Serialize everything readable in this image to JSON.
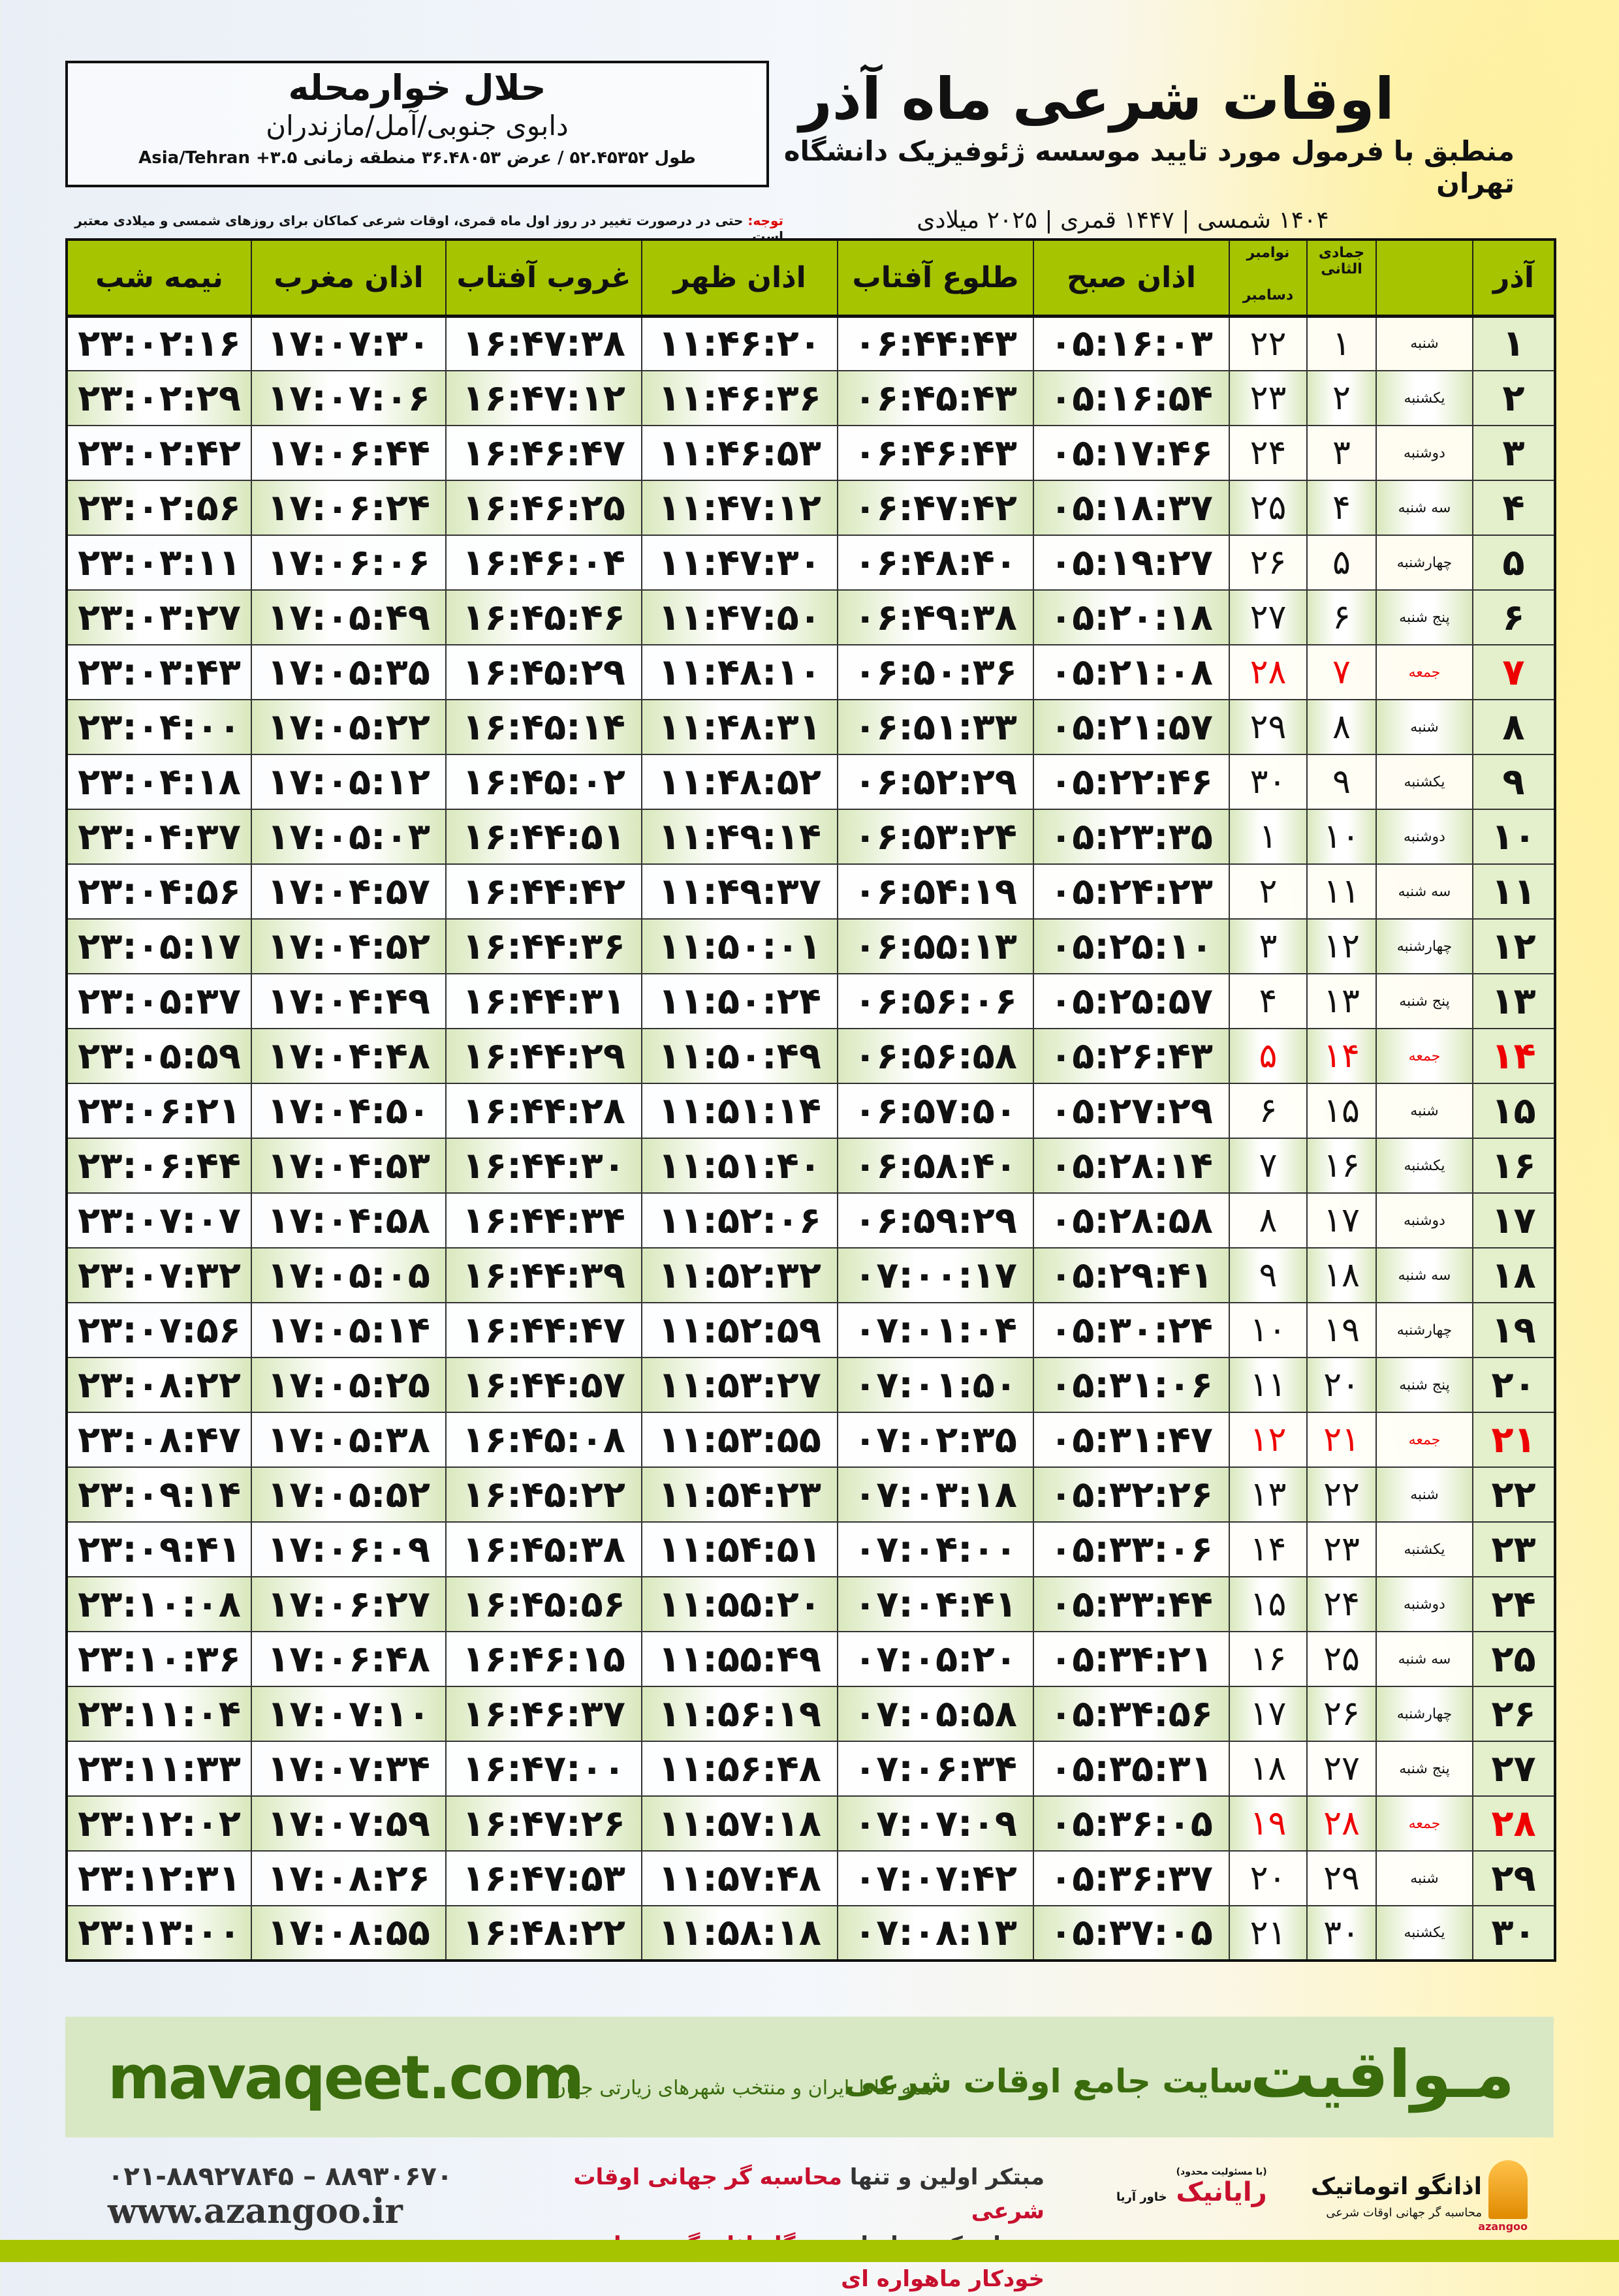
{
  "location": {
    "name": "حلال خوارمحله",
    "region": "دابوی جنوبی/آمل/مازندران",
    "coords": "طول ۵۲.۴۵۳۵۲ / عرض ۳۶.۴۸۰۵۳ منطقه زمانی Asia/Tehran +۳.۵"
  },
  "title": {
    "main": "اوقات شرعی ماه آذر",
    "subtitle": "منطبق با فرمول مورد تایید موسسه ژئوفیزیک دانشگاه تهران",
    "years": "۱۴۰۴ شمسی | ۱۴۴۷ قمری | ۲۰۲۵ میلادی"
  },
  "note": {
    "label": "توجه:",
    "text": " حتی در درصورت تغییر در روز اول ماه قمری، اوقات شرعی کماکان برای روزهای شمسی و میلادی معتبر است."
  },
  "table": {
    "headers": {
      "day": "آذر",
      "qamari": "جمادی الثانی",
      "greg_top": "نوامبر",
      "greg_bottom": "دسامبر",
      "fajr": "اذان صبح",
      "sunrise": "طلوع آفتاب",
      "dhuhr": "اذان ظهر",
      "sunset": "غروب آفتاب",
      "maghrib": "اذان مغرب",
      "midnight": "نیمه شب"
    },
    "holiday_color": "#e00000",
    "header_color": "#a6c400",
    "rows": [
      [
        "۱",
        "شنبه",
        "۱",
        "۲۲",
        "۰۵:۱۶:۰۳",
        "۰۶:۴۴:۴۳",
        "۱۱:۴۶:۲۰",
        "۱۶:۴۷:۳۸",
        "۱۷:۰۷:۳۰",
        "۲۳:۰۲:۱۶",
        false
      ],
      [
        "۲",
        "یکشنبه",
        "۲",
        "۲۳",
        "۰۵:۱۶:۵۴",
        "۰۶:۴۵:۴۳",
        "۱۱:۴۶:۳۶",
        "۱۶:۴۷:۱۲",
        "۱۷:۰۷:۰۶",
        "۲۳:۰۲:۲۹",
        false
      ],
      [
        "۳",
        "دوشنبه",
        "۳",
        "۲۴",
        "۰۵:۱۷:۴۶",
        "۰۶:۴۶:۴۳",
        "۱۱:۴۶:۵۳",
        "۱۶:۴۶:۴۷",
        "۱۷:۰۶:۴۴",
        "۲۳:۰۲:۴۲",
        false
      ],
      [
        "۴",
        "سه شنبه",
        "۴",
        "۲۵",
        "۰۵:۱۸:۳۷",
        "۰۶:۴۷:۴۲",
        "۱۱:۴۷:۱۲",
        "۱۶:۴۶:۲۵",
        "۱۷:۰۶:۲۴",
        "۲۳:۰۲:۵۶",
        false
      ],
      [
        "۵",
        "چهارشنبه",
        "۵",
        "۲۶",
        "۰۵:۱۹:۲۷",
        "۰۶:۴۸:۴۰",
        "۱۱:۴۷:۳۰",
        "۱۶:۴۶:۰۴",
        "۱۷:۰۶:۰۶",
        "۲۳:۰۳:۱۱",
        false
      ],
      [
        "۶",
        "پنج شنبه",
        "۶",
        "۲۷",
        "۰۵:۲۰:۱۸",
        "۰۶:۴۹:۳۸",
        "۱۱:۴۷:۵۰",
        "۱۶:۴۵:۴۶",
        "۱۷:۰۵:۴۹",
        "۲۳:۰۳:۲۷",
        false
      ],
      [
        "۷",
        "جمعه",
        "۷",
        "۲۸",
        "۰۵:۲۱:۰۸",
        "۰۶:۵۰:۳۶",
        "۱۱:۴۸:۱۰",
        "۱۶:۴۵:۲۹",
        "۱۷:۰۵:۳۵",
        "۲۳:۰۳:۴۳",
        true
      ],
      [
        "۸",
        "شنبه",
        "۸",
        "۲۹",
        "۰۵:۲۱:۵۷",
        "۰۶:۵۱:۳۳",
        "۱۱:۴۸:۳۱",
        "۱۶:۴۵:۱۴",
        "۱۷:۰۵:۲۲",
        "۲۳:۰۴:۰۰",
        false
      ],
      [
        "۹",
        "یکشنبه",
        "۹",
        "۳۰",
        "۰۵:۲۲:۴۶",
        "۰۶:۵۲:۲۹",
        "۱۱:۴۸:۵۲",
        "۱۶:۴۵:۰۲",
        "۱۷:۰۵:۱۲",
        "۲۳:۰۴:۱۸",
        false
      ],
      [
        "۱۰",
        "دوشنبه",
        "۱۰",
        "۱",
        "۰۵:۲۳:۳۵",
        "۰۶:۵۳:۲۴",
        "۱۱:۴۹:۱۴",
        "۱۶:۴۴:۵۱",
        "۱۷:۰۵:۰۳",
        "۲۳:۰۴:۳۷",
        false
      ],
      [
        "۱۱",
        "سه شنبه",
        "۱۱",
        "۲",
        "۰۵:۲۴:۲۳",
        "۰۶:۵۴:۱۹",
        "۱۱:۴۹:۳۷",
        "۱۶:۴۴:۴۲",
        "۱۷:۰۴:۵۷",
        "۲۳:۰۴:۵۶",
        false
      ],
      [
        "۱۲",
        "چهارشنبه",
        "۱۲",
        "۳",
        "۰۵:۲۵:۱۰",
        "۰۶:۵۵:۱۳",
        "۱۱:۵۰:۰۱",
        "۱۶:۴۴:۳۶",
        "۱۷:۰۴:۵۲",
        "۲۳:۰۵:۱۷",
        false
      ],
      [
        "۱۳",
        "پنج شنبه",
        "۱۳",
        "۴",
        "۰۵:۲۵:۵۷",
        "۰۶:۵۶:۰۶",
        "۱۱:۵۰:۲۴",
        "۱۶:۴۴:۳۱",
        "۱۷:۰۴:۴۹",
        "۲۳:۰۵:۳۷",
        false
      ],
      [
        "۱۴",
        "جمعه",
        "۱۴",
        "۵",
        "۰۵:۲۶:۴۳",
        "۰۶:۵۶:۵۸",
        "۱۱:۵۰:۴۹",
        "۱۶:۴۴:۲۹",
        "۱۷:۰۴:۴۸",
        "۲۳:۰۵:۵۹",
        true
      ],
      [
        "۱۵",
        "شنبه",
        "۱۵",
        "۶",
        "۰۵:۲۷:۲۹",
        "۰۶:۵۷:۵۰",
        "۱۱:۵۱:۱۴",
        "۱۶:۴۴:۲۸",
        "۱۷:۰۴:۵۰",
        "۲۳:۰۶:۲۱",
        false
      ],
      [
        "۱۶",
        "یکشنبه",
        "۱۶",
        "۷",
        "۰۵:۲۸:۱۴",
        "۰۶:۵۸:۴۰",
        "۱۱:۵۱:۴۰",
        "۱۶:۴۴:۳۰",
        "۱۷:۰۴:۵۳",
        "۲۳:۰۶:۴۴",
        false
      ],
      [
        "۱۷",
        "دوشنبه",
        "۱۷",
        "۸",
        "۰۵:۲۸:۵۸",
        "۰۶:۵۹:۲۹",
        "۱۱:۵۲:۰۶",
        "۱۶:۴۴:۳۴",
        "۱۷:۰۴:۵۸",
        "۲۳:۰۷:۰۷",
        false
      ],
      [
        "۱۸",
        "سه شنبه",
        "۱۸",
        "۹",
        "۰۵:۲۹:۴۱",
        "۰۷:۰۰:۱۷",
        "۱۱:۵۲:۳۲",
        "۱۶:۴۴:۳۹",
        "۱۷:۰۵:۰۵",
        "۲۳:۰۷:۳۲",
        false
      ],
      [
        "۱۹",
        "چهارشنبه",
        "۱۹",
        "۱۰",
        "۰۵:۳۰:۲۴",
        "۰۷:۰۱:۰۴",
        "۱۱:۵۲:۵۹",
        "۱۶:۴۴:۴۷",
        "۱۷:۰۵:۱۴",
        "۲۳:۰۷:۵۶",
        false
      ],
      [
        "۲۰",
        "پنج شنبه",
        "۲۰",
        "۱۱",
        "۰۵:۳۱:۰۶",
        "۰۷:۰۱:۵۰",
        "۱۱:۵۳:۲۷",
        "۱۶:۴۴:۵۷",
        "۱۷:۰۵:۲۵",
        "۲۳:۰۸:۲۲",
        false
      ],
      [
        "۲۱",
        "جمعه",
        "۲۱",
        "۱۲",
        "۰۵:۳۱:۴۷",
        "۰۷:۰۲:۳۵",
        "۱۱:۵۳:۵۵",
        "۱۶:۴۵:۰۸",
        "۱۷:۰۵:۳۸",
        "۲۳:۰۸:۴۷",
        true
      ],
      [
        "۲۲",
        "شنبه",
        "۲۲",
        "۱۳",
        "۰۵:۳۲:۲۶",
        "۰۷:۰۳:۱۸",
        "۱۱:۵۴:۲۳",
        "۱۶:۴۵:۲۲",
        "۱۷:۰۵:۵۲",
        "۲۳:۰۹:۱۴",
        false
      ],
      [
        "۲۳",
        "یکشنبه",
        "۲۳",
        "۱۴",
        "۰۵:۳۳:۰۶",
        "۰۷:۰۴:۰۰",
        "۱۱:۵۴:۵۱",
        "۱۶:۴۵:۳۸",
        "۱۷:۰۶:۰۹",
        "۲۳:۰۹:۴۱",
        false
      ],
      [
        "۲۴",
        "دوشنبه",
        "۲۴",
        "۱۵",
        "۰۵:۳۳:۴۴",
        "۰۷:۰۴:۴۱",
        "۱۱:۵۵:۲۰",
        "۱۶:۴۵:۵۶",
        "۱۷:۰۶:۲۷",
        "۲۳:۱۰:۰۸",
        false
      ],
      [
        "۲۵",
        "سه شنبه",
        "۲۵",
        "۱۶",
        "۰۵:۳۴:۲۱",
        "۰۷:۰۵:۲۰",
        "۱۱:۵۵:۴۹",
        "۱۶:۴۶:۱۵",
        "۱۷:۰۶:۴۸",
        "۲۳:۱۰:۳۶",
        false
      ],
      [
        "۲۶",
        "چهارشنبه",
        "۲۶",
        "۱۷",
        "۰۵:۳۴:۵۶",
        "۰۷:۰۵:۵۸",
        "۱۱:۵۶:۱۹",
        "۱۶:۴۶:۳۷",
        "۱۷:۰۷:۱۰",
        "۲۳:۱۱:۰۴",
        false
      ],
      [
        "۲۷",
        "پنج شنبه",
        "۲۷",
        "۱۸",
        "۰۵:۳۵:۳۱",
        "۰۷:۰۶:۳۴",
        "۱۱:۵۶:۴۸",
        "۱۶:۴۷:۰۰",
        "۱۷:۰۷:۳۴",
        "۲۳:۱۱:۳۳",
        false
      ],
      [
        "۲۸",
        "جمعه",
        "۲۸",
        "۱۹",
        "۰۵:۳۶:۰۵",
        "۰۷:۰۷:۰۹",
        "۱۱:۵۷:۱۸",
        "۱۶:۴۷:۲۶",
        "۱۷:۰۷:۵۹",
        "۲۳:۱۲:۰۲",
        true
      ],
      [
        "۲۹",
        "شنبه",
        "۲۹",
        "۲۰",
        "۰۵:۳۶:۳۷",
        "۰۷:۰۷:۴۲",
        "۱۱:۵۷:۴۸",
        "۱۶:۴۷:۵۳",
        "۱۷:۰۸:۲۶",
        "۲۳:۱۲:۳۱",
        false
      ],
      [
        "۳۰",
        "یکشنبه",
        "۳۰",
        "۲۱",
        "۰۵:۳۷:۰۵",
        "۰۷:۰۸:۱۳",
        "۱۱:۵۸:۱۸",
        "۱۶:۴۸:۲۲",
        "۱۷:۰۸:۵۵",
        "۲۳:۱۳:۰۰",
        false
      ]
    ]
  },
  "banner": {
    "brand": "مـواقیت",
    "tagline": "سایت جامع اوقات شرعی",
    "tagline2": "همه نقاط ایران و منتخب شهرهای زیارتی جهان",
    "site": "mavaqeet.com",
    "color": "#3a6b0c"
  },
  "footer": {
    "phone": "۰۲۱-۸۸۹۲۷۸۴۵ – ۸۸۹۳۰۶۷۰",
    "web": "www.azangoo.ir",
    "line1a": "مبتکر اولین و تنها ",
    "line1b": "محاسبه گر جهانی اوقات شرعی",
    "line2a": "و تولید کننده انواع ",
    "line2b": "دستگاه اذان گوی تمام خودکار ماهواره ای",
    "logo_raynik": "رایانیک",
    "logo_raynik_sub": "خاور آریا",
    "logo_raynik_top": "(با مسئولیت محدود)",
    "logo_azangoo": "اذانگو اتوماتیک",
    "logo_azangoo_sub": "محاسبه گر جهانی اوقات شرعی",
    "logo_azangoo_en": "azangoo"
  }
}
